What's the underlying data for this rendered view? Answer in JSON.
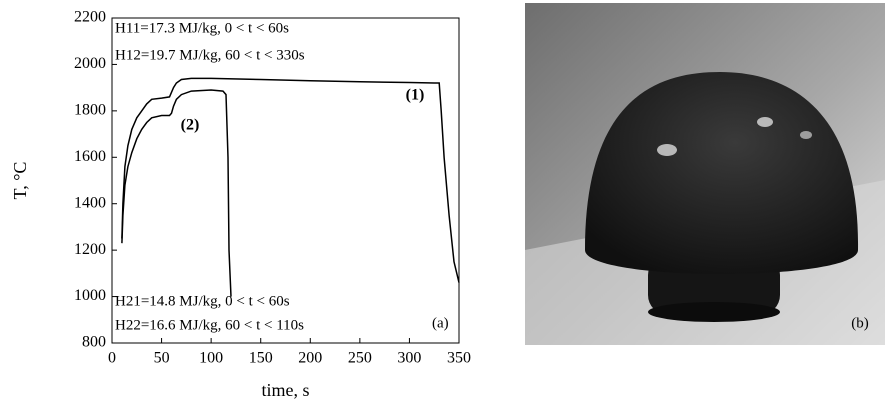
{
  "chart_data": {
    "type": "line",
    "xlabel": "time, s",
    "ylabel": "T, °C",
    "xlim": [
      0,
      350
    ],
    "xticks": [
      0,
      50,
      100,
      150,
      200,
      250,
      300,
      350
    ],
    "ylim": [
      800,
      2200
    ],
    "yticks": [
      800,
      1000,
      1200,
      1400,
      1600,
      1800,
      2000,
      2200
    ],
    "grid": false,
    "annotations": [
      "H11=17.3 MJ/kg, 0 < t < 60s",
      "H12=19.7 MJ/kg, 60 < t < 330s",
      "H21=14.8 MJ/kg, 0 < t < 60s",
      "H22=16.6 MJ/kg, 60 < t < 110s",
      "(a)"
    ],
    "series": [
      {
        "name": "(1)",
        "color": "#000000",
        "x": [
          10,
          11,
          13,
          16,
          20,
          25,
          30,
          35,
          40,
          50,
          58,
          60,
          62,
          65,
          70,
          80,
          100,
          150,
          200,
          250,
          300,
          325,
          330,
          332,
          335,
          340,
          345,
          350
        ],
        "values": [
          1250,
          1400,
          1560,
          1650,
          1720,
          1770,
          1800,
          1830,
          1850,
          1855,
          1860,
          1880,
          1900,
          1920,
          1935,
          1940,
          1940,
          1935,
          1930,
          1925,
          1922,
          1920,
          1920,
          1800,
          1600,
          1350,
          1150,
          1060
        ]
      },
      {
        "name": "(2)",
        "color": "#000000",
        "x": [
          10,
          11,
          13,
          16,
          20,
          25,
          30,
          35,
          40,
          50,
          58,
          60,
          62,
          65,
          70,
          80,
          100,
          112,
          115,
          117,
          118,
          120
        ],
        "values": [
          1230,
          1350,
          1480,
          1560,
          1620,
          1680,
          1720,
          1750,
          1770,
          1780,
          1780,
          1790,
          1820,
          1850,
          1870,
          1885,
          1890,
          1885,
          1870,
          1600,
          1200,
          1000
        ]
      }
    ]
  },
  "photo": {
    "label": "(b)"
  }
}
